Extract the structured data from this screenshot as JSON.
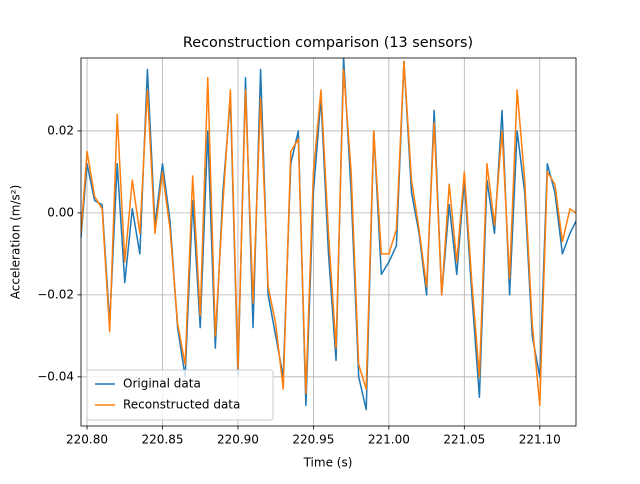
{
  "chart_data": {
    "type": "line",
    "title": "Reconstruction comparison (13 sensors)",
    "x_label": "Time (s)",
    "y_label": "Acceleration (m/s²)",
    "x": [
      220.796,
      220.8,
      220.805,
      220.81,
      220.815,
      220.82,
      220.825,
      220.83,
      220.835,
      220.84,
      220.845,
      220.85,
      220.855,
      220.86,
      220.865,
      220.87,
      220.875,
      220.88,
      220.885,
      220.89,
      220.895,
      220.9,
      220.905,
      220.91,
      220.915,
      220.92,
      220.925,
      220.93,
      220.935,
      220.94,
      220.945,
      220.95,
      220.955,
      220.96,
      220.965,
      220.97,
      220.975,
      220.98,
      220.985,
      220.99,
      220.995,
      221.0,
      221.005,
      221.01,
      221.015,
      221.02,
      221.025,
      221.03,
      221.035,
      221.04,
      221.045,
      221.05,
      221.055,
      221.06,
      221.065,
      221.07,
      221.075,
      221.08,
      221.085,
      221.09,
      221.095,
      221.1,
      221.105,
      221.11,
      221.115,
      221.12,
      221.124
    ],
    "series": [
      {
        "name": "Original data",
        "color": "#1f77b4",
        "values": [
          -0.006,
          0.012,
          0.003,
          0.002,
          -0.027,
          0.012,
          -0.017,
          0.001,
          -0.01,
          0.035,
          -0.003,
          0.012,
          -0.002,
          -0.028,
          -0.04,
          0.003,
          -0.028,
          0.02,
          -0.033,
          0.005,
          0.028,
          -0.04,
          0.033,
          -0.028,
          0.035,
          -0.02,
          -0.03,
          -0.04,
          0.012,
          0.02,
          -0.047,
          0.005,
          0.028,
          -0.01,
          -0.036,
          0.038,
          0.005,
          -0.04,
          -0.048,
          0.02,
          -0.015,
          -0.012,
          -0.008,
          0.037,
          0.005,
          -0.005,
          -0.02,
          0.025,
          -0.02,
          0.002,
          -0.015,
          0.008,
          -0.02,
          -0.045,
          0.008,
          -0.005,
          0.025,
          -0.02,
          0.02,
          0.005,
          -0.03,
          -0.04,
          0.012,
          0.005,
          -0.01,
          -0.005,
          -0.002
        ]
      },
      {
        "name": "Reconstructed data",
        "color": "#ff7f0e",
        "values": [
          -0.005,
          0.015,
          0.004,
          0.001,
          -0.029,
          0.024,
          -0.012,
          0.008,
          -0.005,
          0.03,
          -0.005,
          0.01,
          -0.004,
          -0.027,
          -0.037,
          0.009,
          -0.025,
          0.033,
          -0.03,
          0.002,
          0.03,
          -0.038,
          0.03,
          -0.022,
          0.028,
          -0.018,
          -0.027,
          -0.043,
          0.015,
          0.018,
          -0.044,
          0.01,
          0.03,
          -0.005,
          -0.033,
          0.035,
          0.01,
          -0.037,
          -0.043,
          0.02,
          -0.01,
          -0.01,
          -0.004,
          0.037,
          0.008,
          -0.004,
          -0.018,
          0.022,
          -0.02,
          0.007,
          -0.012,
          0.01,
          -0.017,
          -0.04,
          0.012,
          -0.003,
          0.02,
          -0.016,
          0.03,
          0.008,
          -0.027,
          -0.047,
          0.01,
          0.007,
          -0.007,
          0.001,
          0.0
        ]
      }
    ],
    "xlim": [
      220.796,
      221.124
    ],
    "ylim": [
      -0.052,
      0.0378
    ],
    "xticks": [
      {
        "value": 220.8,
        "label": "220.80"
      },
      {
        "value": 220.85,
        "label": "220.85"
      },
      {
        "value": 220.9,
        "label": "220.90"
      },
      {
        "value": 220.95,
        "label": "220.95"
      },
      {
        "value": 221.0,
        "label": "221.00"
      },
      {
        "value": 221.05,
        "label": "221.05"
      },
      {
        "value": 221.1,
        "label": "221.10"
      }
    ],
    "yticks": [
      {
        "value": -0.04,
        "label": "−0.04"
      },
      {
        "value": -0.02,
        "label": "−0.02"
      },
      {
        "value": 0,
        "label": "0.00"
      },
      0.02
    ],
    "grid": true,
    "legend": "lower-left"
  }
}
